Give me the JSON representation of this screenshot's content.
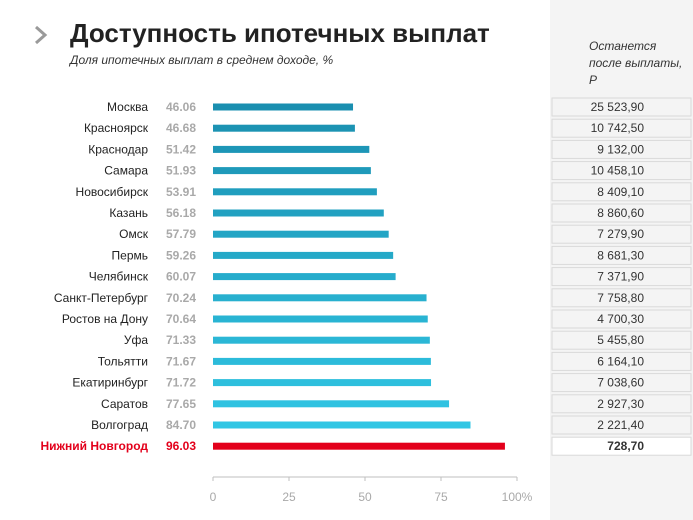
{
  "header": {
    "title": "Доступность ипотечных выплат",
    "subtitle": "Доля ипотечных выплат в среднем доходе, %",
    "remaining_header": "Останется после выплаты, Р"
  },
  "colors": {
    "bar_start": "#1a8fb0",
    "bar_end": "#31c6e4",
    "highlight": "#e3001b",
    "value_text": "#a9a9a9",
    "axis": "#bfbfbf"
  },
  "chart_data": {
    "type": "bar",
    "orientation": "horizontal",
    "categories": [
      "Москва",
      "Красноярск",
      "Краснодар",
      "Самара",
      "Новосибирск",
      "Казань",
      "Омск",
      "Пермь",
      "Челябинск",
      "Санкт-Петербург",
      "Ростов на Дону",
      "Уфа",
      "Тольятти",
      "Екатиринбург",
      "Саратов",
      "Волгоград",
      "Нижний Новгород"
    ],
    "values": [
      46.06,
      46.68,
      51.42,
      51.93,
      53.91,
      56.18,
      57.79,
      59.26,
      60.07,
      70.24,
      70.64,
      71.33,
      71.67,
      71.72,
      77.65,
      84.7,
      96.03
    ],
    "value_labels": [
      "46.06",
      "46.68",
      "51.42",
      "51.93",
      "53.91",
      "56.18",
      "57.79",
      "59.26",
      "60.07",
      "70.24",
      "70.64",
      "71.33",
      "71.67",
      "71.72",
      "77.65",
      "84.70",
      "96.03"
    ],
    "remaining": [
      "25 523,90",
      "10 742,50",
      "9 132,00",
      "10 458,10",
      "8 409,10",
      "8 860,60",
      "7 279,90",
      "8 681,30",
      "7 371,90",
      "7 758,80",
      "4 700,30",
      "5 455,80",
      "6 164,10",
      "7 038,60",
      "2 927,30",
      "2 221,40",
      "728,70"
    ],
    "highlight_index": 16,
    "xlim": [
      0,
      100
    ],
    "x_ticks": [
      "0",
      "25",
      "50",
      "75",
      "100%"
    ],
    "grid": false
  }
}
